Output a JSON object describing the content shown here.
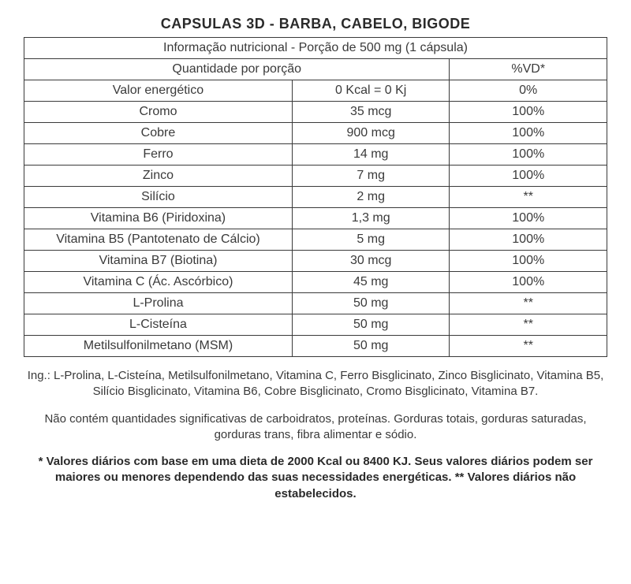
{
  "title": "CAPSULAS 3D - BARBA, CABELO, BIGODE",
  "header1": "Informação nutricional - Porção de 500 mg (1 cápsula)",
  "header2_left": "Quantidade por porção",
  "header2_right": "%VD*",
  "rows": [
    {
      "name": "Valor energético",
      "amount": "0 Kcal = 0 Kj",
      "vd": "0%"
    },
    {
      "name": "Cromo",
      "amount": "35 mcg",
      "vd": "100%"
    },
    {
      "name": "Cobre",
      "amount": "900 mcg",
      "vd": "100%"
    },
    {
      "name": "Ferro",
      "amount": "14 mg",
      "vd": "100%"
    },
    {
      "name": "Zinco",
      "amount": "7 mg",
      "vd": "100%"
    },
    {
      "name": "Silício",
      "amount": "2 mg",
      "vd": "**"
    },
    {
      "name": "Vitamina B6 (Piridoxina)",
      "amount": "1,3 mg",
      "vd": "100%"
    },
    {
      "name": "Vitamina B5 (Pantotenato de Cálcio)",
      "amount": "5 mg",
      "vd": "100%"
    },
    {
      "name": "Vitamina B7 (Biotina)",
      "amount": "30 mcg",
      "vd": "100%"
    },
    {
      "name": "Vitamina C (Ác. Ascórbico)",
      "amount": "45 mg",
      "vd": "100%"
    },
    {
      "name": "L-Prolina",
      "amount": "50 mg",
      "vd": "**"
    },
    {
      "name": "L-Cisteína",
      "amount": "50 mg",
      "vd": "**"
    },
    {
      "name": "Metilsulfonilmetano (MSM)",
      "amount": "50 mg",
      "vd": "**"
    }
  ],
  "foot1": "Ing.: L-Prolina, L-Cisteína, Metilsulfonilmetano, Vitamina C, Ferro Bisglicinato, Zinco Bisglicinato, Vitamina B5, Silício Bisglicinato, Vitamina B6, Cobre Bisglicinato, Cromo Bisglicinato, Vitamina B7.",
  "foot2": "Não contém quantidades significativas de carboidratos, proteínas. Gorduras totais, gorduras saturadas, gorduras trans, fibra alimentar e sódio.",
  "foot3": "* Valores diários com base em uma dieta de 2000 Kcal ou 8400 KJ. Seus valores diários podem ser maiores ou menores dependendo das suas necessidades energéticas. ** Valores diários não estabelecidos.",
  "style": {
    "border_color": "#3a3a3a",
    "text_color": "#3a3a3a",
    "title_fontsize": 18,
    "body_fontsize": 16,
    "foot_fontsize": 15,
    "col_widths_pct": [
      46,
      27,
      27
    ]
  }
}
